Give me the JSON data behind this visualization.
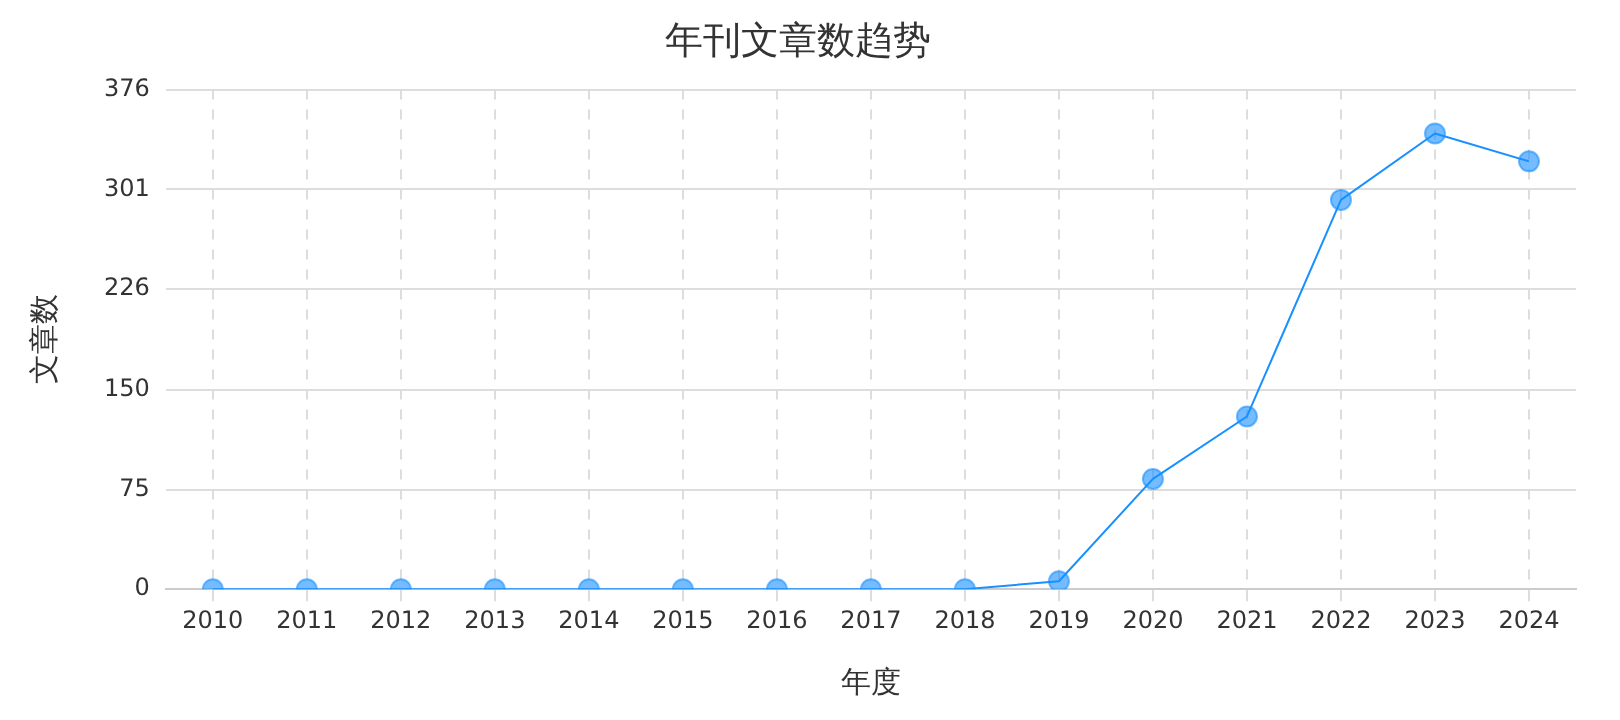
{
  "chart_data": {
    "type": "line",
    "title": "年刊文章数趋势",
    "xlabel": "年度",
    "ylabel": "文章数",
    "categories": [
      "2010",
      "2011",
      "2012",
      "2013",
      "2014",
      "2015",
      "2016",
      "2017",
      "2018",
      "2019",
      "2020",
      "2021",
      "2022",
      "2023",
      "2024"
    ],
    "series": [
      {
        "color": "#1890ff",
        "values": [
          0,
          0,
          0,
          0,
          0,
          0,
          0,
          0,
          0,
          6,
          83,
          130,
          293,
          343,
          322
        ]
      }
    ],
    "ylim": [
      0,
      376
    ],
    "yticks": [
      0,
      75,
      150,
      226,
      301,
      376
    ],
    "grid": true,
    "legend": false,
    "marker": "circle",
    "line_style": "solid"
  }
}
